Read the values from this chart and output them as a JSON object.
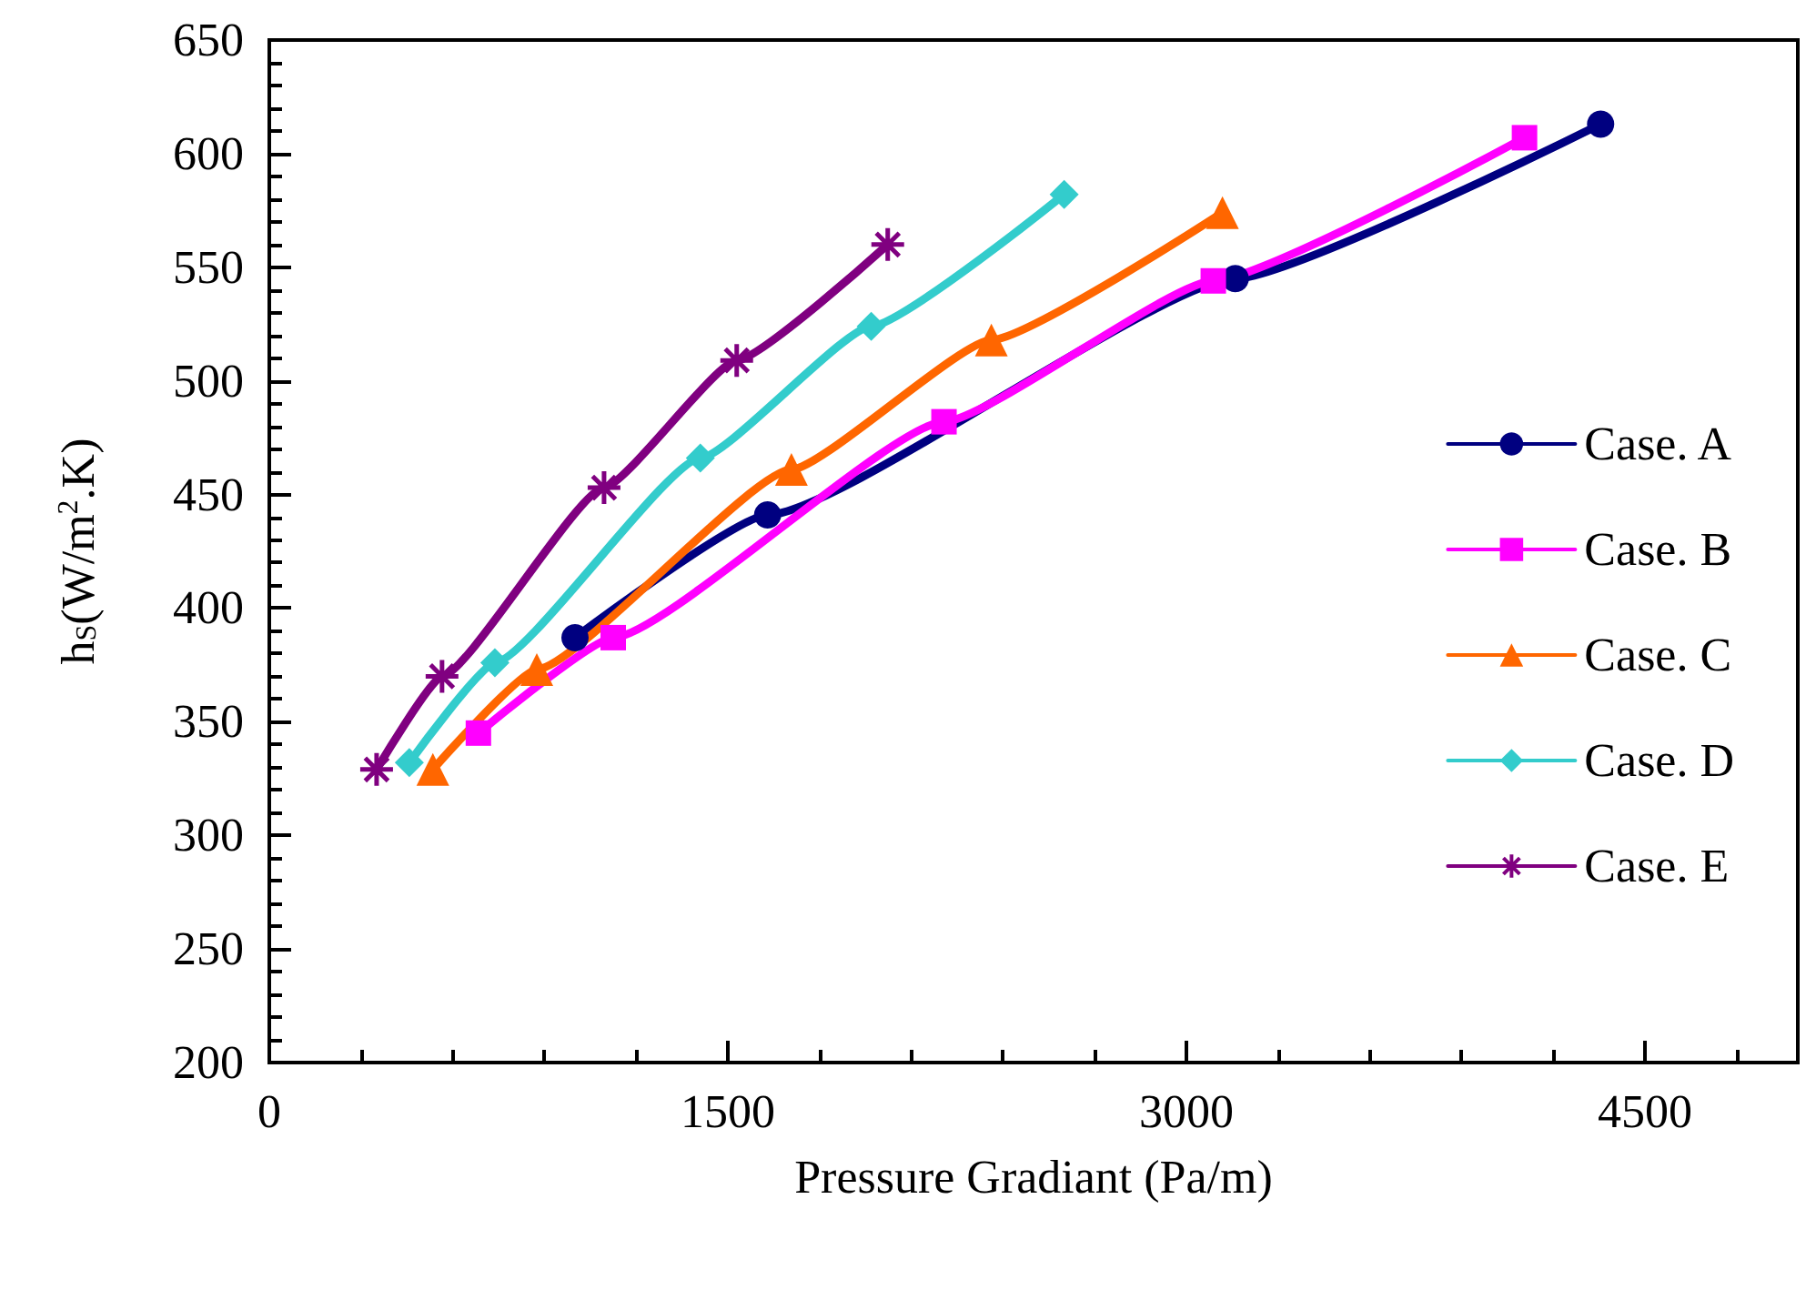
{
  "chart_data": {
    "type": "line",
    "xlabel": "Pressure Gradiant (Pa/m)",
    "ylabel": "h$_{S}$(W/m$^{2}$.K)",
    "xlim": [
      0,
      5000
    ],
    "xticks": [
      0,
      1500,
      3000,
      4500
    ],
    "ylim": [
      200,
      650
    ],
    "yticks": [
      200,
      250,
      300,
      350,
      400,
      450,
      500,
      550,
      600,
      650
    ],
    "grid": false,
    "legend": "right",
    "line_style": "solid",
    "series": [
      {
        "name": "Case. A",
        "color": "#000080",
        "marker": "circle",
        "x": [
          1000,
          1630,
          3160,
          4355
        ],
        "values": [
          387,
          441,
          545,
          613
        ]
      },
      {
        "name": "Case. B",
        "color": "#ff00ff",
        "marker": "square",
        "x": [
          684,
          1125,
          2207,
          3088,
          4106
        ],
        "values": [
          345,
          387,
          482,
          544,
          607
        ]
      },
      {
        "name": "Case. C",
        "color": "#ff6600",
        "marker": "triangle",
        "x": [
          535,
          875,
          1708,
          2362,
          3118
        ],
        "values": [
          329,
          373,
          461,
          518,
          574
        ]
      },
      {
        "name": "Case. D",
        "color": "#33cccc",
        "marker": "diamond",
        "x": [
          458,
          738,
          1410,
          1969,
          2600
        ],
        "values": [
          332,
          376,
          466,
          524,
          582
        ]
      },
      {
        "name": "Case. E",
        "color": "#800080",
        "marker": "cross",
        "x": [
          351,
          565,
          1095,
          1529,
          2023
        ],
        "values": [
          329,
          370,
          453,
          509,
          560
        ]
      }
    ]
  }
}
